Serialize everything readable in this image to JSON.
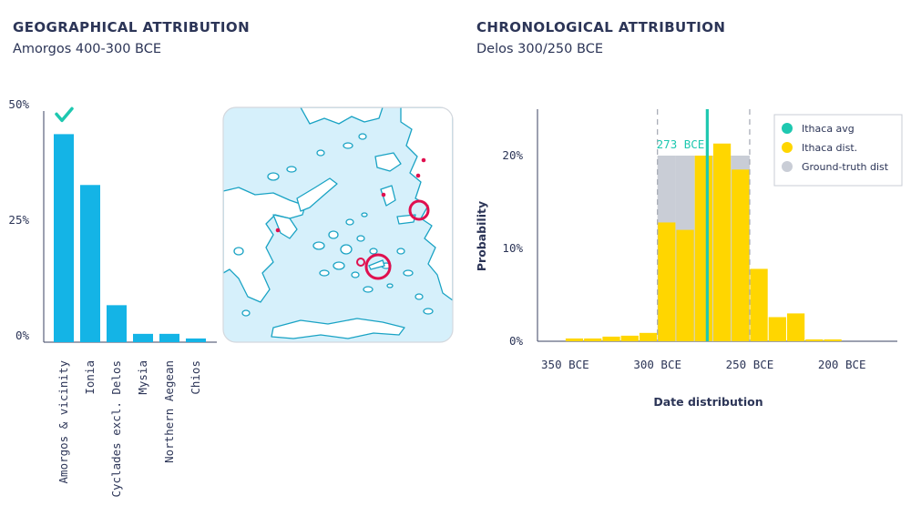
{
  "left": {
    "heading": "GEOGRAPHICAL ATTRIBUTION",
    "subtitle": "Amorgos 400-300 BCE"
  },
  "right": {
    "heading": "CHRONOLOGICAL ATTRIBUTION",
    "subtitle": "Delos 300/250 BCE"
  },
  "map": {
    "icon": "aegean-map-illustration",
    "colors": {
      "sea": "#d6f0fb",
      "land": "#ffffff",
      "coast": "#1aa3c4",
      "marker": "#e0104f"
    }
  },
  "chart_data": [
    {
      "type": "bar",
      "categories": [
        "Amorgos & vicinity",
        "Ionia",
        "Cyclades excl. Delos",
        "Mysia",
        "Northern Aegean",
        "Chios"
      ],
      "values": [
        45,
        34,
        8,
        1.8,
        1.8,
        0.8
      ],
      "ylim": [
        0,
        50
      ],
      "yticks": [
        "0%",
        "25%",
        "50%"
      ],
      "ytick_values": [
        0,
        25,
        50
      ],
      "checkmark_on": "Amorgos & vicinity",
      "colors": {
        "bar": "#14b4e6",
        "check": "#1ec8b0"
      }
    },
    {
      "type": "bar",
      "title": "",
      "xlabel": "Date distribution",
      "ylabel": "Probability",
      "xlim": [
        -365,
        -170
      ],
      "ylim": [
        0,
        25
      ],
      "xticks": [
        "350 BCE",
        "300 BCE",
        "250 BCE",
        "200 BCE"
      ],
      "xtick_values": [
        -350,
        -300,
        -250,
        -200
      ],
      "yticks": [
        "0%",
        "10%",
        "20%"
      ],
      "ytick_values": [
        0,
        10,
        20
      ],
      "bin_width": 10,
      "series": [
        {
          "name": "Ithaca dist.",
          "bin_starts": [
            -350,
            -340,
            -330,
            -320,
            -310,
            -300,
            -290,
            -280,
            -270,
            -260,
            -250,
            -240,
            -230,
            -220,
            -210
          ],
          "values": [
            0.3,
            0.3,
            0.5,
            0.6,
            0.9,
            12.8,
            12,
            20,
            21.3,
            18.5,
            7.8,
            2.6,
            3,
            0.2,
            0.2
          ]
        },
        {
          "name": "Ground-truth dist",
          "bin_starts": [
            -300,
            -290,
            -280,
            -270,
            -260
          ],
          "values": [
            20,
            20,
            20,
            20,
            20
          ]
        }
      ],
      "ithaca_avg": -273,
      "avg_label": "273 BCE",
      "dashed_lines": [
        -300,
        -250
      ],
      "legend": [
        {
          "name": "Ithaca avg",
          "color": "#1ec8b0"
        },
        {
          "name": "Ithaca dist.",
          "color": "#ffd600"
        },
        {
          "name": "Ground-truth dist",
          "color": "#c9cdd6"
        }
      ],
      "legend_position": "top-right",
      "colors": {
        "dist": "#ffd600",
        "ground": "#c9cdd6",
        "avg": "#1ec8b0"
      }
    }
  ]
}
